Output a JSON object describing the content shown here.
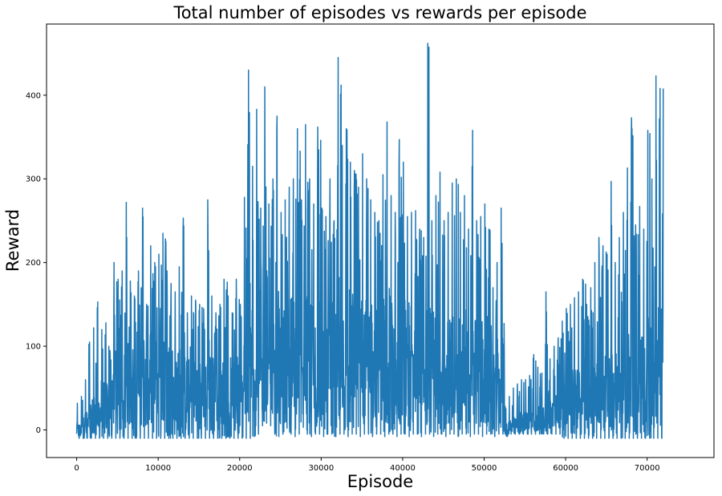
{
  "chart_data": {
    "type": "line",
    "title": "Total number of episodes vs rewards per episode",
    "xlabel": "Episode",
    "ylabel": "Reward",
    "xlim": [
      -3700,
      78200
    ],
    "ylim": [
      -33,
      485
    ],
    "xticks": [
      0,
      10000,
      20000,
      30000,
      40000,
      50000,
      60000,
      70000
    ],
    "yticks": [
      0,
      100,
      200,
      300,
      400
    ],
    "grid": false,
    "legend": false,
    "line_color": "#1f77b4",
    "series": [
      {
        "x": [
          0,
          500,
          1000,
          1500,
          2000,
          2500,
          3000,
          3500,
          4000,
          4500,
          5000,
          5500,
          6000,
          6500,
          7000,
          7500,
          8000,
          8500,
          9000,
          9500,
          10000,
          10500,
          11000,
          11500,
          12000,
          12500,
          13000,
          13500,
          14000,
          14500,
          15000,
          15500,
          16000,
          16500,
          17000,
          17500,
          18000,
          18500,
          19000,
          19500,
          20000,
          20500,
          21000,
          21500,
          22000,
          22500,
          23000,
          23500,
          24000,
          24500,
          25000,
          25500,
          26000,
          26500,
          27000,
          27500,
          28000,
          28500,
          29000,
          29500,
          30000,
          30500,
          31000,
          31500,
          32000,
          32500,
          33000,
          33500,
          34000,
          34500,
          35000,
          35500,
          36000,
          36500,
          37000,
          37500,
          38000,
          38500,
          39000,
          39500,
          40000,
          40500,
          41000,
          41500,
          42000,
          42500,
          43000,
          43500,
          44000,
          44500,
          45000,
          45500,
          46000,
          46500,
          47000,
          47500,
          48000,
          48500,
          49000,
          49500,
          50000,
          50500,
          51000,
          51500,
          52000,
          52500,
          53000,
          53500,
          54000,
          54500,
          55000,
          55500,
          56000,
          56500,
          57000,
          57500,
          58000,
          58500,
          59000,
          59500,
          60000,
          60500,
          61000,
          61500,
          62000,
          62500,
          63000,
          63500,
          64000,
          64500,
          65000,
          65500,
          66000,
          66500,
          67000,
          67500,
          68000,
          68500,
          69000,
          69500,
          70000,
          70500,
          71000,
          71500,
          72000,
          72500,
          73000,
          73500,
          74000,
          74500
        ],
        "min": [
          -10,
          -10,
          -10,
          -10,
          -10,
          -10,
          -10,
          -10,
          -10,
          -10,
          -10,
          -10,
          -10,
          -10,
          -10,
          -10,
          -10,
          -10,
          -10,
          -10,
          -10,
          -10,
          -10,
          -10,
          -10,
          -10,
          -10,
          -10,
          -10,
          -10,
          -10,
          -10,
          -10,
          -10,
          -10,
          -10,
          -10,
          -10,
          -10,
          -10,
          -10,
          -10,
          -10,
          -8,
          -5,
          5,
          8,
          5,
          -5,
          -8,
          -5,
          2,
          -5,
          -8,
          -5,
          3,
          -5,
          -8,
          -5,
          -5,
          -8,
          -5,
          -5,
          -8,
          -5,
          -5,
          -8,
          -5,
          -5,
          -8,
          -5,
          -5,
          -8,
          -5,
          -5,
          -8,
          -5,
          -5,
          -8,
          -5,
          -5,
          -8,
          -5,
          -5,
          -8,
          -5,
          -5,
          -8,
          -5,
          -5,
          -8,
          -5,
          -5,
          -8,
          -5,
          -5,
          -8,
          -5,
          -5,
          -8,
          -5,
          -5,
          -8,
          -5,
          -5,
          -8,
          -5,
          -5,
          -5,
          -5,
          -5,
          -5,
          -5,
          -5,
          -5,
          -5,
          -5,
          -5,
          -5,
          -10,
          -10,
          -10,
          -10,
          -10,
          -10,
          -10,
          -10,
          -10,
          -10,
          -10,
          -10,
          -10,
          -10,
          -10,
          -10,
          -10,
          -10,
          -10,
          -10,
          -10,
          -10,
          -10,
          -10,
          -10,
          -10
        ],
        "max": [
          32,
          40,
          60,
          105,
          122,
          153,
          120,
          128,
          95,
          200,
          180,
          190,
          272,
          178,
          160,
          190,
          265,
          150,
          220,
          200,
          210,
          235,
          190,
          175,
          165,
          195,
          253,
          140,
          160,
          155,
          150,
          145,
          275,
          160,
          140,
          150,
          180,
          160,
          140,
          180,
          150,
          278,
          430,
          315,
          383,
          265,
          410,
          270,
          300,
          375,
          260,
          275,
          290,
          300,
          360,
          275,
          365,
          300,
          270,
          362,
          265,
          255,
          300,
          250,
          445,
          340,
          360,
          320,
          310,
          290,
          330,
          300,
          275,
          260,
          250,
          305,
          368,
          280,
          260,
          347,
          320,
          255,
          260,
          262,
          240,
          230,
          462,
          250,
          280,
          308,
          250,
          260,
          295,
          300,
          260,
          280,
          240,
          358,
          250,
          255,
          270,
          240,
          170,
          200,
          265,
          28,
          40,
          50,
          55,
          60,
          60,
          65,
          90,
          75,
          68,
          165,
          85,
          100,
          110,
          130,
          145,
          150,
          158,
          165,
          180,
          150,
          170,
          200,
          230,
          220,
          210,
          297,
          200,
          230,
          260,
          313,
          373,
          245,
          267,
          240,
          358,
          300,
          423,
          408
        ],
        "mid": [
          5,
          10,
          15,
          25,
          25,
          30,
          40,
          45,
          40,
          60,
          60,
          60,
          80,
          65,
          60,
          70,
          75,
          55,
          80,
          75,
          80,
          75,
          70,
          65,
          60,
          65,
          75,
          55,
          60,
          55,
          55,
          50,
          70,
          60,
          55,
          55,
          60,
          55,
          50,
          55,
          50,
          70,
          110,
          100,
          120,
          95,
          120,
          95,
          100,
          110,
          95,
          100,
          105,
          105,
          115,
          100,
          110,
          105,
          100,
          115,
          100,
          95,
          105,
          95,
          120,
          105,
          110,
          105,
          100,
          100,
          105,
          100,
          100,
          95,
          95,
          100,
          110,
          100,
          95,
          105,
          100,
          95,
          95,
          95,
          90,
          90,
          115,
          90,
          95,
          100,
          90,
          90,
          95,
          95,
          90,
          90,
          85,
          95,
          85,
          85,
          85,
          80,
          65,
          70,
          80,
          5,
          8,
          10,
          12,
          14,
          14,
          16,
          22,
          20,
          18,
          35,
          25,
          28,
          32,
          38,
          42,
          45,
          48,
          50,
          55,
          48,
          52,
          58,
          62,
          60,
          60,
          75,
          58,
          65,
          70,
          80,
          90,
          70,
          75,
          70,
          85,
          80,
          95,
          100
        ]
      }
    ]
  }
}
